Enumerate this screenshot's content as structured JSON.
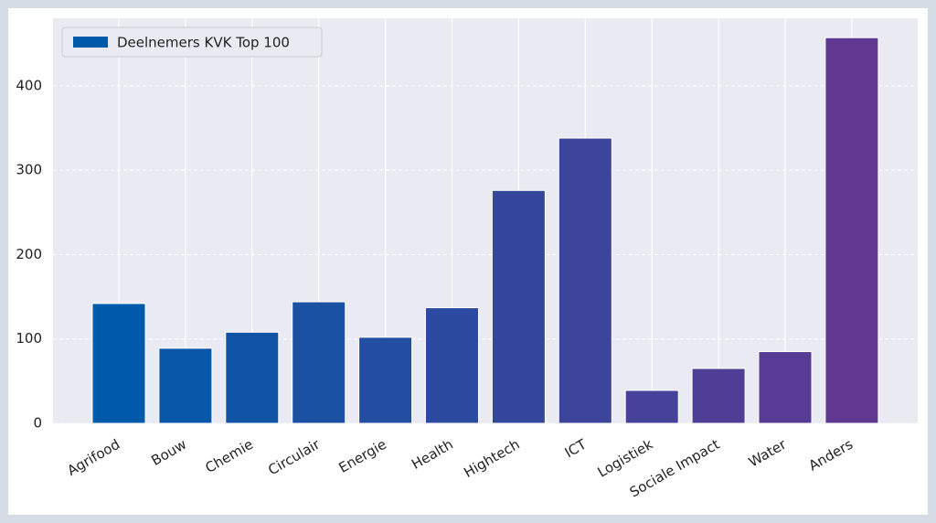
{
  "chart_data": {
    "type": "bar",
    "categories": [
      "Agrifood",
      "Bouw",
      "Chemie",
      "Circulair",
      "Energie",
      "Health",
      "Hightech",
      "ICT",
      "Logistiek",
      "Sociale Impact",
      "Water",
      "Anders"
    ],
    "series": [
      {
        "name": "Deelnemers KVK Top 100",
        "color": "#005aaa",
        "values": [
          142,
          89,
          108,
          144,
          102,
          137,
          276,
          338,
          39,
          65,
          85,
          457
        ]
      }
    ],
    "bar_colors": [
      "#005aaa",
      "#0957a8",
      "#1154a6",
      "#1a51a3",
      "#234ea1",
      "#2c4a9f",
      "#34479d",
      "#3d449b",
      "#464199",
      "#4f3e96",
      "#573b94",
      "#603892"
    ],
    "ylim": [
      0,
      480
    ],
    "yticks": [
      0,
      100,
      200,
      300,
      400
    ],
    "grid": true,
    "legend": "upper left"
  }
}
